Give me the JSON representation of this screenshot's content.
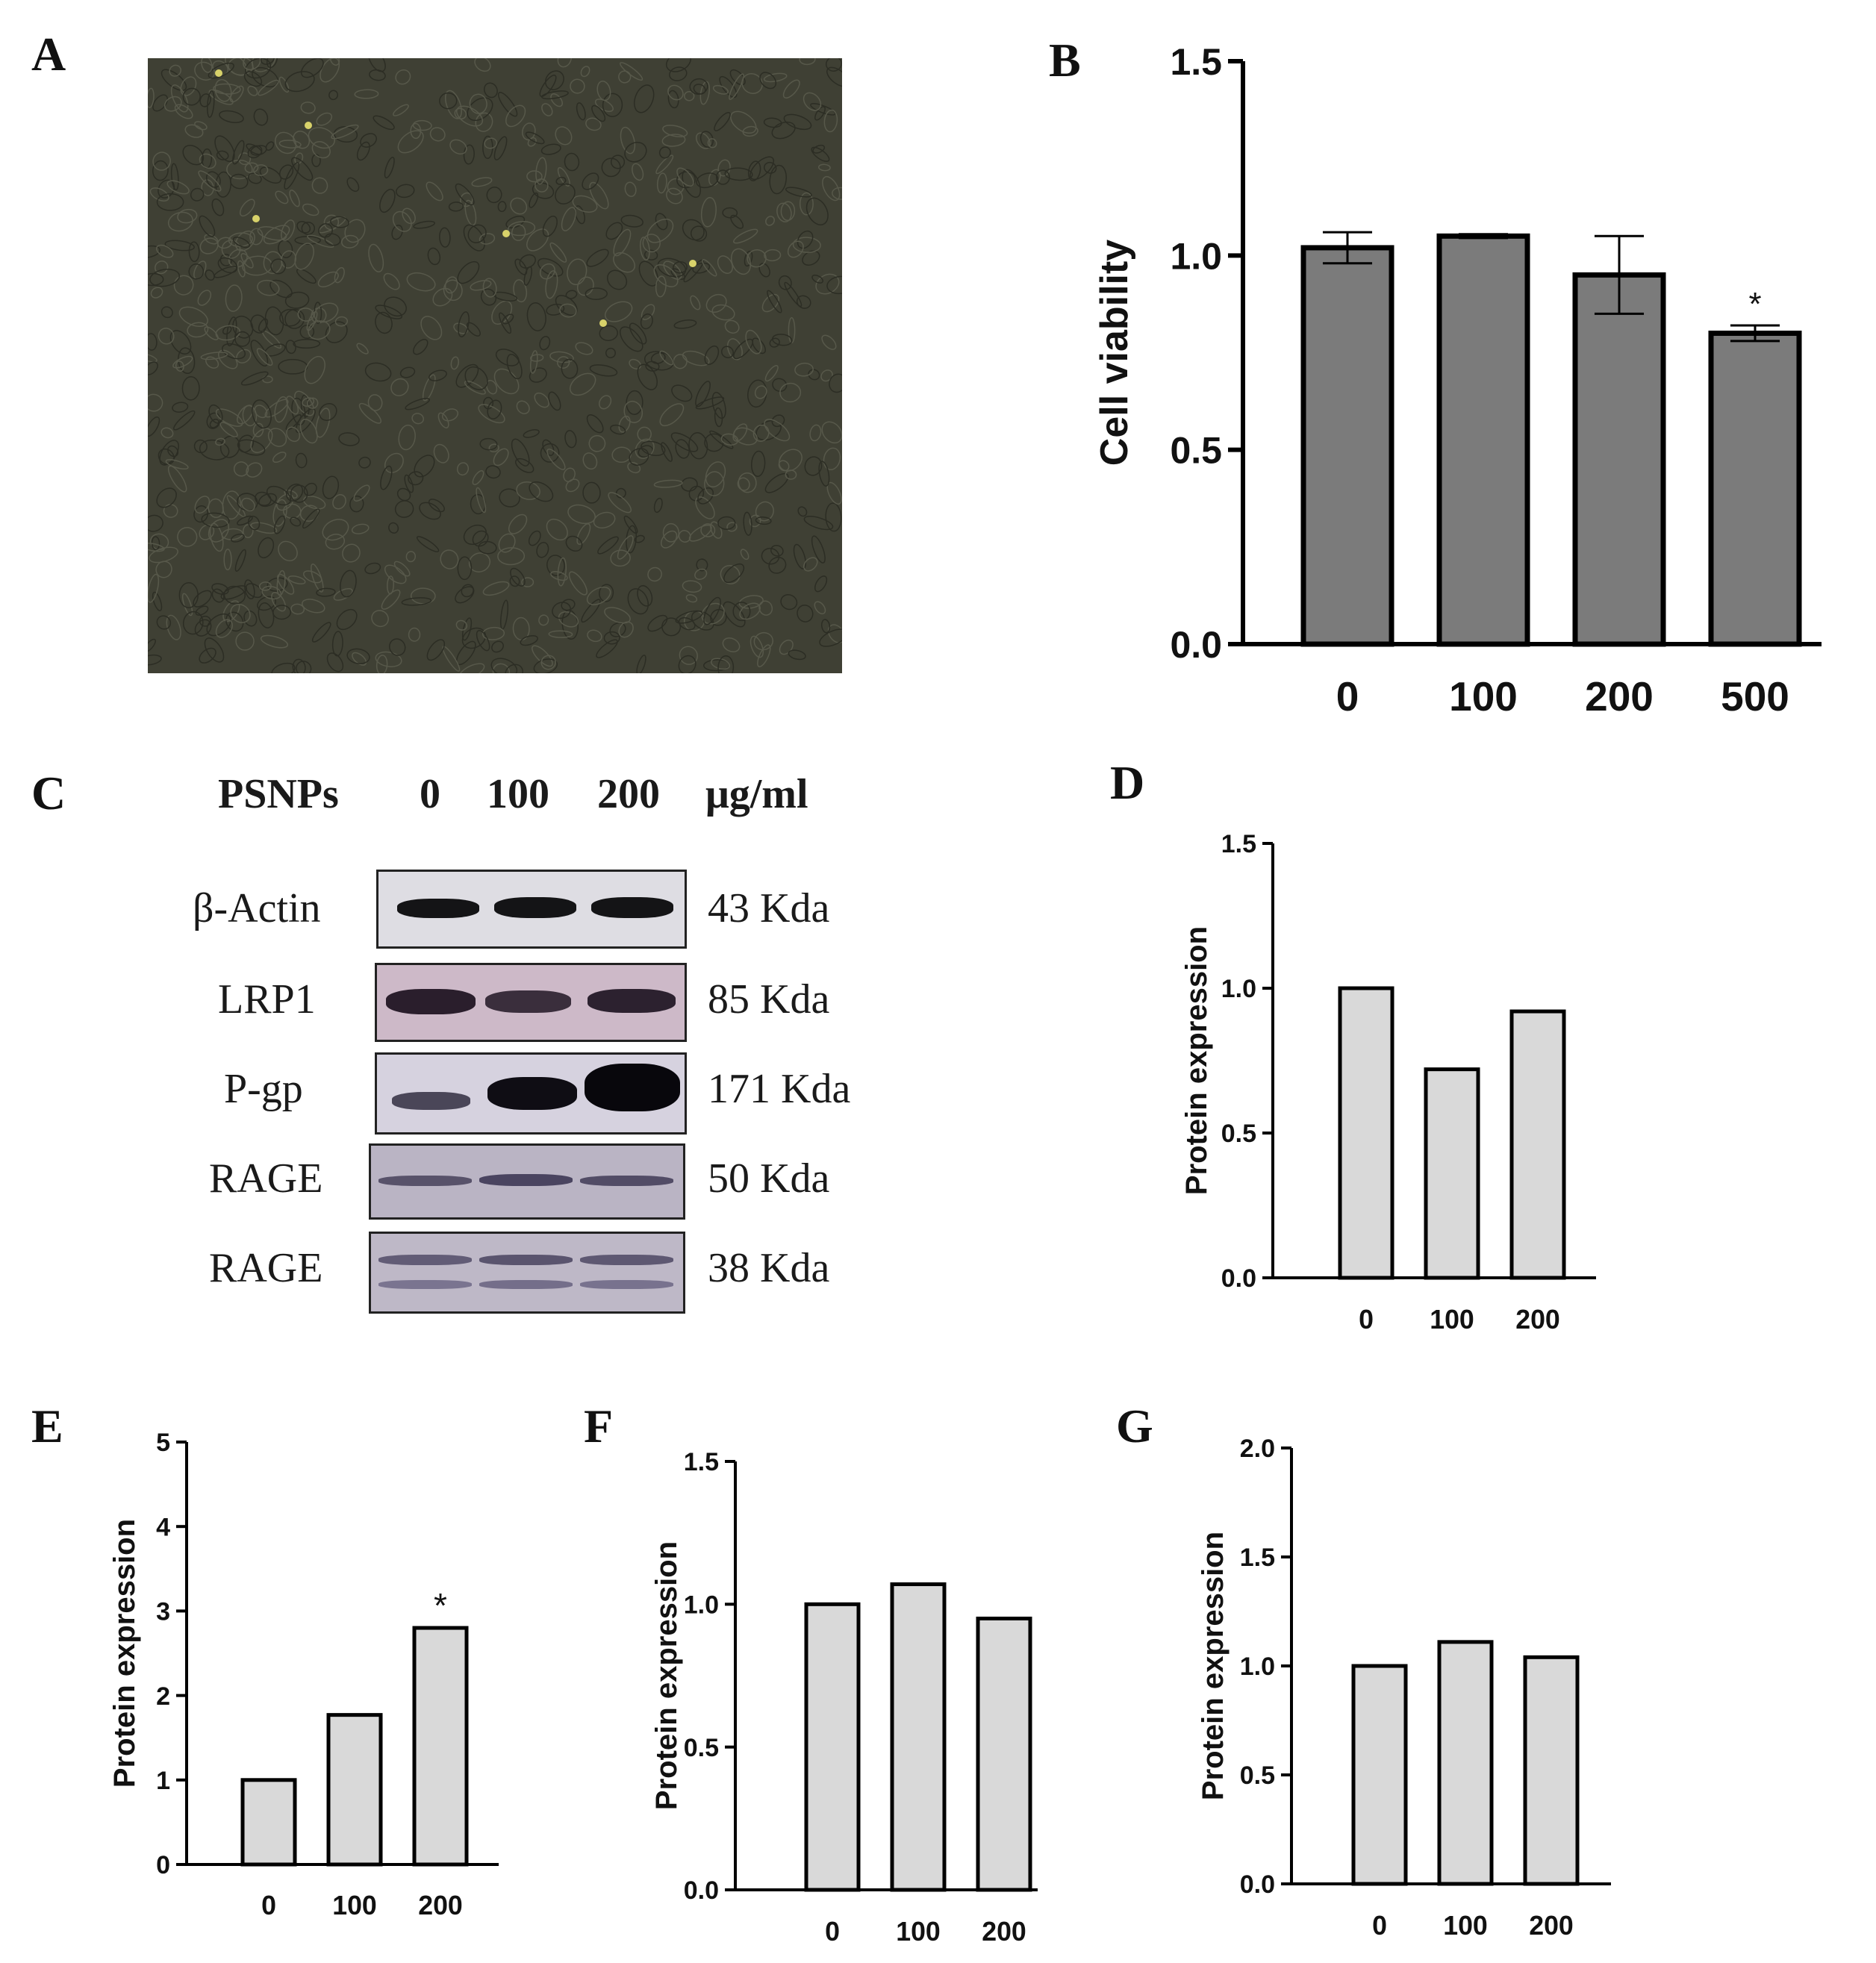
{
  "panels": {
    "a": "A",
    "b": "B",
    "c": "C",
    "d": "D",
    "e": "E",
    "f": "F",
    "g": "G"
  },
  "western_blot": {
    "treatment_label": "PSNPs",
    "doses": [
      "0",
      "100",
      "200"
    ],
    "unit_label": "μg/ml",
    "rows": [
      {
        "protein": "β-Actin",
        "size": "43 Kda"
      },
      {
        "protein": "LRP1",
        "size": "85 Kda"
      },
      {
        "protein": "P-gp",
        "size": "171 Kda"
      },
      {
        "protein": "RAGE",
        "size": "50 Kda"
      },
      {
        "protein": "RAGE",
        "size": "38 Kda"
      }
    ]
  },
  "chart_data": [
    {
      "panel": "B",
      "type": "bar",
      "categories": [
        "0",
        "100",
        "200",
        "500"
      ],
      "values": [
        1.02,
        1.05,
        0.95,
        0.8
      ],
      "errors": [
        0.04,
        0.005,
        0.1,
        0.02
      ],
      "annotations": [
        "",
        "",
        "",
        "*"
      ],
      "xlabel": "",
      "ylabel": "Cell viability",
      "ylim": [
        0,
        1.5
      ],
      "yticks": [
        "0.0",
        "0.5",
        "1.0",
        "1.5"
      ],
      "bar_color": "#7b7b7b"
    },
    {
      "panel": "D",
      "type": "bar",
      "categories": [
        "0",
        "100",
        "200"
      ],
      "values": [
        1.0,
        0.72,
        0.92
      ],
      "ylabel": "Protein expression",
      "ylim": [
        0,
        1.5
      ],
      "yticks": [
        "0.0",
        "0.5",
        "1.0",
        "1.5"
      ],
      "annotations": [
        "",
        "",
        ""
      ],
      "bar_color": "#d9d9d9"
    },
    {
      "panel": "E",
      "type": "bar",
      "categories": [
        "0",
        "100",
        "200"
      ],
      "values": [
        1.0,
        1.77,
        2.8
      ],
      "ylabel": "Protein expression",
      "ylim": [
        0,
        5
      ],
      "yticks": [
        "0",
        "1",
        "2",
        "3",
        "4",
        "5"
      ],
      "annotations": [
        "",
        "",
        "*"
      ],
      "bar_color": "#d9d9d9"
    },
    {
      "panel": "F",
      "type": "bar",
      "categories": [
        "0",
        "100",
        "200"
      ],
      "values": [
        1.0,
        1.07,
        0.95
      ],
      "ylabel": "Protein expression",
      "ylim": [
        0,
        1.5
      ],
      "yticks": [
        "0.0",
        "0.5",
        "1.0",
        "1.5"
      ],
      "annotations": [
        "",
        "",
        ""
      ],
      "bar_color": "#d9d9d9"
    },
    {
      "panel": "G",
      "type": "bar",
      "categories": [
        "0",
        "100",
        "200"
      ],
      "values": [
        1.0,
        1.11,
        1.04
      ],
      "ylabel": "Protein expression",
      "ylim": [
        0,
        2.0
      ],
      "yticks": [
        "0.0",
        "0.5",
        "1.0",
        "1.5",
        "2.0"
      ],
      "annotations": [
        "",
        "",
        ""
      ],
      "bar_color": "#d9d9d9"
    }
  ]
}
